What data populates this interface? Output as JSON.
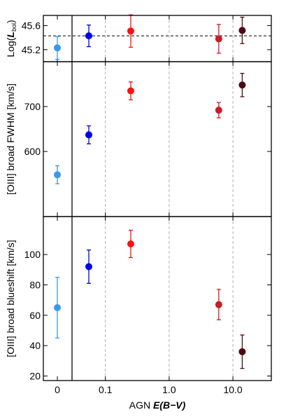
{
  "chart_data": {
    "type": "scatter",
    "xlabel": "AGN E(B−V)",
    "xticks": [
      "0",
      "0.1",
      "1.0",
      "10.0"
    ],
    "x_scale": "log (with separate zero column)",
    "vertical_guides": [
      0.1,
      1.0,
      10.0
    ],
    "panels": [
      {
        "id": "lbol",
        "ylabel": "Log(L_bol)",
        "ylim": [
          45.0,
          45.77
        ],
        "yticks": [
          45.2,
          45.6
        ],
        "reference_line": 45.43,
        "points": [
          {
            "x": 0,
            "y": 45.23,
            "err": 0.19,
            "color": "#3a9ae6"
          },
          {
            "x": 0.055,
            "y": 45.43,
            "err": 0.18,
            "color": "#0000e6"
          },
          {
            "x": 0.25,
            "y": 45.51,
            "err": 0.27,
            "color": "#ff1010"
          },
          {
            "x": 6.0,
            "y": 45.38,
            "err": 0.24,
            "color": "#cc1b24"
          },
          {
            "x": 14.0,
            "y": 45.52,
            "err": 0.22,
            "color": "#4d0a10"
          }
        ]
      },
      {
        "id": "fwhm",
        "ylabel": "[OIII] broad FWHM [km/s]",
        "ylim": [
          455,
          800
        ],
        "yticks": [
          600,
          700
        ],
        "points": [
          {
            "x": 0,
            "y": 548,
            "err": 20,
            "color": "#3a9ae6"
          },
          {
            "x": 0.055,
            "y": 637,
            "err": 20,
            "color": "#0000e6"
          },
          {
            "x": 0.25,
            "y": 735,
            "err": 20,
            "color": "#ff1010"
          },
          {
            "x": 6.0,
            "y": 692,
            "err": 17,
            "color": "#cc1b24"
          },
          {
            "x": 14.0,
            "y": 748,
            "err": 26,
            "color": "#4d0a10"
          }
        ]
      },
      {
        "id": "blueshift",
        "ylabel": "[OIII] broad blueshift [km/s]",
        "ylim": [
          17,
          125
        ],
        "yticks": [
          20,
          40,
          60,
          80,
          100
        ],
        "points": [
          {
            "x": 0,
            "y": 65,
            "err": 20,
            "color": "#3a9ae6"
          },
          {
            "x": 0.055,
            "y": 92,
            "err": 11,
            "color": "#0000e6"
          },
          {
            "x": 0.25,
            "y": 107,
            "err": 9,
            "color": "#ff1010"
          },
          {
            "x": 6.0,
            "y": 67,
            "err": 10,
            "color": "#cc1b24"
          },
          {
            "x": 14.0,
            "y": 36,
            "err": 11,
            "color": "#4d0a10"
          }
        ]
      }
    ]
  }
}
